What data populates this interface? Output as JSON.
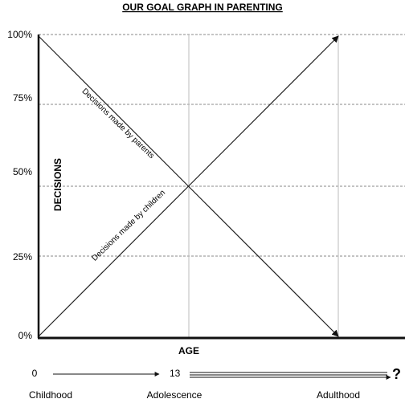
{
  "chart_data": {
    "type": "line",
    "title": "OUR GOAL GRAPH IN PARENTING",
    "xlabel": "AGE",
    "ylabel": "DECISIONS",
    "y_ticks": [
      "100%",
      "75%",
      "50%",
      "25%",
      "0%"
    ],
    "ylim": [
      0,
      100
    ],
    "x_age_ticks": [
      "0",
      "13",
      "?"
    ],
    "stages": [
      "Childhood",
      "Adolescence",
      "Adulthood"
    ],
    "grid": true,
    "series": [
      {
        "name": "Decisions made by parents",
        "points": [
          [
            0,
            100
          ],
          [
            1,
            50
          ],
          [
            2,
            0
          ]
        ]
      },
      {
        "name": "Decisions made by children",
        "points": [
          [
            0,
            0
          ],
          [
            1,
            50
          ],
          [
            2,
            100
          ]
        ]
      }
    ]
  }
}
